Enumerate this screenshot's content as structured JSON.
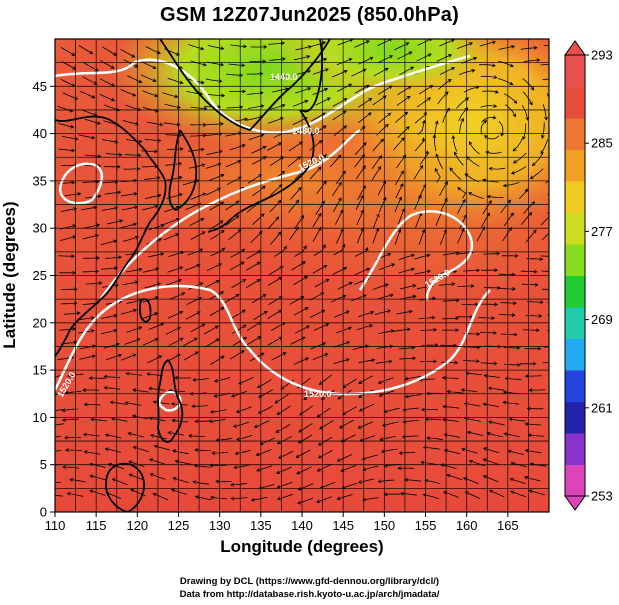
{
  "title": "GSM 12Z07Jun2025 (850.0hPa)",
  "x_axis_title": "Longitude (degrees)",
  "y_axis_title": "Latitude  (degrees)",
  "credit_line_1": "Drawing by DCL (https://www.gfd-dennou.org/library/dcl/)",
  "credit_line_2": "Data from http://database.rish.kyoto-u.ac.jp/arch/jmadata/",
  "chart_data": {
    "type": "heatmap",
    "variable_levels": "850.0hPa",
    "xlim": [
      110,
      170
    ],
    "ylim": [
      0,
      50
    ],
    "x_ticks": [
      "110",
      "115",
      "120",
      "125",
      "130",
      "135",
      "140",
      "145",
      "150",
      "155",
      "160",
      "165"
    ],
    "y_ticks": [
      "0",
      "5",
      "10",
      "15",
      "20",
      "25",
      "30",
      "35",
      "40",
      "45"
    ],
    "colorbar": {
      "min": 253,
      "max": 293,
      "tick_labels": [
        "293",
        "285",
        "277",
        "269",
        "261",
        "253"
      ],
      "colors": [
        "#dd44bb",
        "#8833cc",
        "#2222aa",
        "#2244dd",
        "#22aaee",
        "#22ccaa",
        "#22cc33",
        "#88dd22",
        "#ccdd22",
        "#f0cc22",
        "#f0a022",
        "#ee7733",
        "#e84f3a",
        "#e85050"
      ]
    },
    "contour_labels": [
      "1520.0",
      "1520.0",
      "1440.0",
      "1480.0",
      "1520.0",
      "1520.0"
    ]
  }
}
